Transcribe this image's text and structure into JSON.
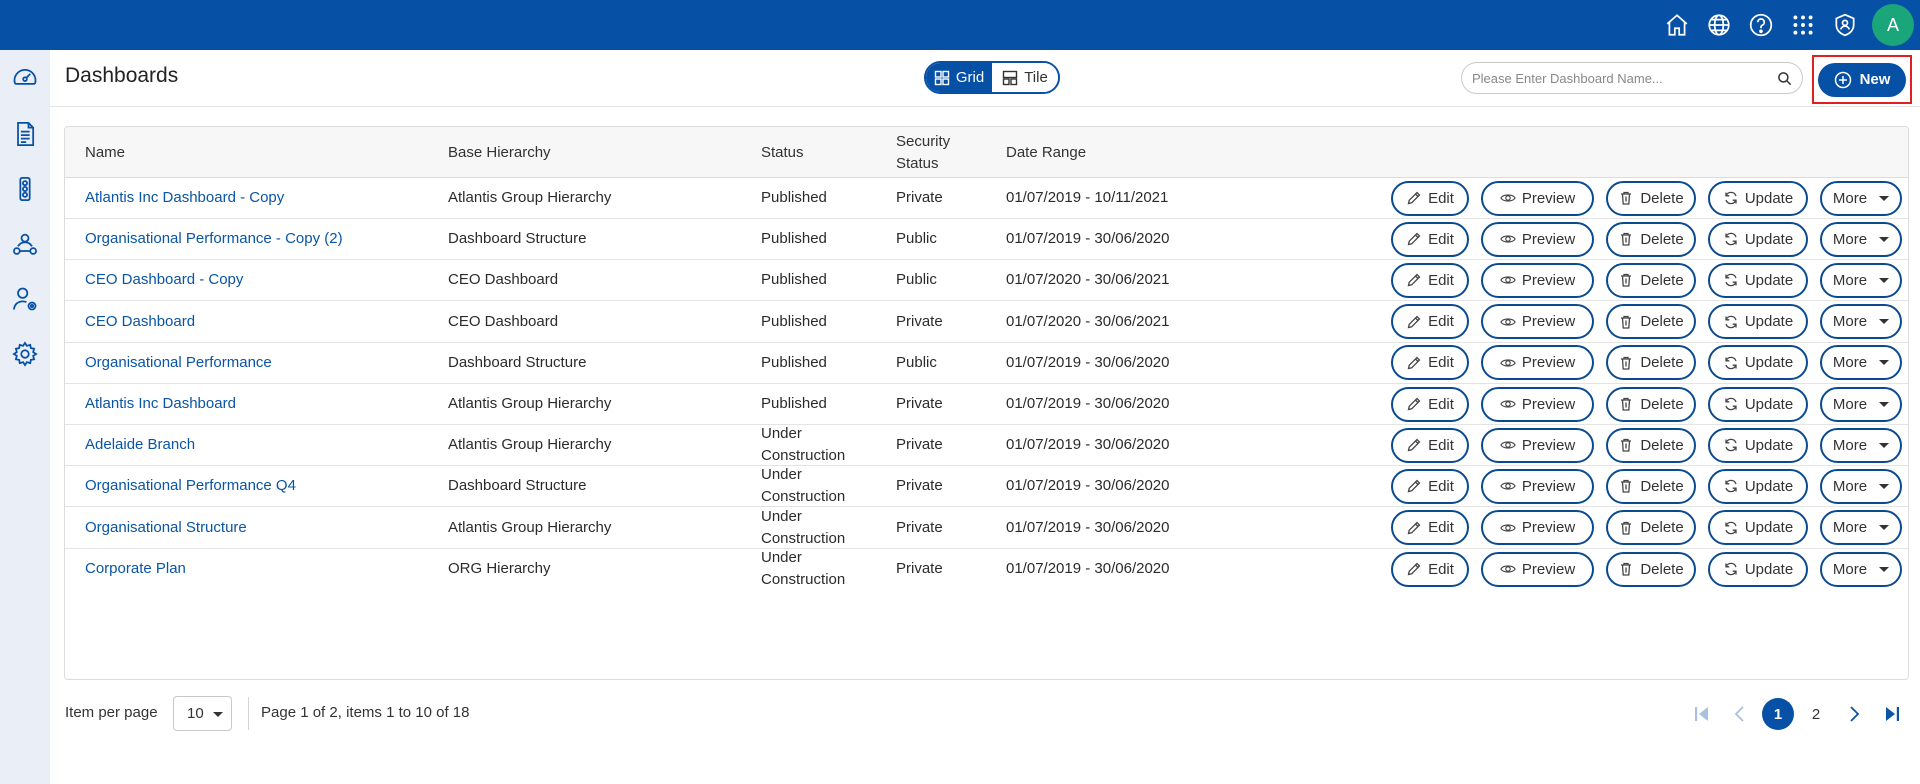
{
  "topbar": {
    "icons": [
      "home-icon",
      "globe-icon",
      "help-icon",
      "apps-grid-icon",
      "shield-user-icon"
    ],
    "avatar_initial": "A"
  },
  "sidebar": {
    "items": [
      "dashboard-gauge-icon",
      "document-icon",
      "traffic-light-icon",
      "hierarchy-icon",
      "user-settings-icon",
      "settings-gear-icon"
    ]
  },
  "header": {
    "title": "Dashboards",
    "view_toggle": {
      "grid_label": "Grid",
      "tile_label": "Tile",
      "active": "grid"
    },
    "search_placeholder": "Please Enter Dashboard Name...",
    "new_label": "New"
  },
  "table": {
    "columns": {
      "name": "Name",
      "base_hierarchy": "Base Hierarchy",
      "status": "Status",
      "security_status_line1": "Security",
      "security_status_line2": "Status",
      "date_range": "Date Range"
    },
    "actions": {
      "edit": "Edit",
      "preview": "Preview",
      "delete": "Delete",
      "update": "Update",
      "more": "More"
    },
    "rows": [
      {
        "name": "Atlantis Inc Dashboard - Copy",
        "hierarchy": "Atlantis Group Hierarchy",
        "status_l1": "Published",
        "status_l2": "",
        "security": "Private",
        "date_range": "01/07/2019 - 10/11/2021"
      },
      {
        "name": "Organisational Performance - Copy (2)",
        "hierarchy": "Dashboard Structure",
        "status_l1": "Published",
        "status_l2": "",
        "security": "Public",
        "date_range": "01/07/2019 - 30/06/2020"
      },
      {
        "name": "CEO Dashboard - Copy",
        "hierarchy": "CEO Dashboard",
        "status_l1": "Published",
        "status_l2": "",
        "security": "Public",
        "date_range": "01/07/2020 - 30/06/2021"
      },
      {
        "name": "CEO Dashboard",
        "hierarchy": "CEO Dashboard",
        "status_l1": "Published",
        "status_l2": "",
        "security": "Private",
        "date_range": "01/07/2020 - 30/06/2021"
      },
      {
        "name": "Organisational Performance",
        "hierarchy": "Dashboard Structure",
        "status_l1": "Published",
        "status_l2": "",
        "security": "Public",
        "date_range": "01/07/2019 - 30/06/2020"
      },
      {
        "name": "Atlantis Inc Dashboard",
        "hierarchy": "Atlantis Group Hierarchy",
        "status_l1": "Published",
        "status_l2": "",
        "security": "Private",
        "date_range": "01/07/2019 - 30/06/2020"
      },
      {
        "name": "Adelaide Branch",
        "hierarchy": "Atlantis Group Hierarchy",
        "status_l1": "Under",
        "status_l2": "Construction",
        "security": "Private",
        "date_range": "01/07/2019 - 30/06/2020"
      },
      {
        "name": "Organisational Performance Q4",
        "hierarchy": "Dashboard Structure",
        "status_l1": "Under",
        "status_l2": "Construction",
        "security": "Private",
        "date_range": "01/07/2019 - 30/06/2020"
      },
      {
        "name": "Organisational Structure",
        "hierarchy": "Atlantis Group Hierarchy",
        "status_l1": "Under",
        "status_l2": "Construction",
        "security": "Private",
        "date_range": "01/07/2019 - 30/06/2020"
      },
      {
        "name": "Corporate Plan",
        "hierarchy": "ORG Hierarchy",
        "status_l1": "Under",
        "status_l2": "Construction",
        "security": "Private",
        "date_range": "01/07/2019 - 30/06/2020"
      }
    ]
  },
  "footer": {
    "items_per_page_label": "Item per page",
    "items_per_page_value": "10",
    "page_info": "Page 1 of 2, items 1 to 10 of 18",
    "pages": [
      "1",
      "2"
    ],
    "current_page": "1"
  },
  "colors": {
    "brand": "#0650a6",
    "avatar": "#1aa67a",
    "sidebar_bg": "#e9eef7",
    "highlight_border": "#e02020"
  }
}
